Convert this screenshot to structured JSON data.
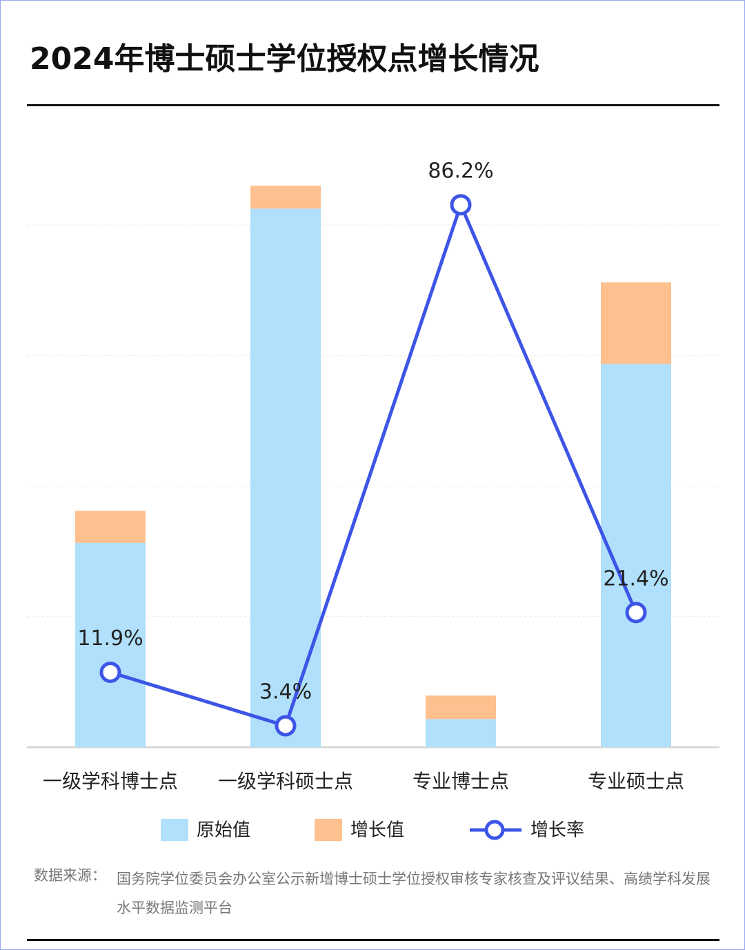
{
  "chart_data": {
    "type": "bar-line",
    "title": "2024年博士硕士学位授权点增长情况",
    "categories": [
      "一级学科博士点",
      "一级学科硕士点",
      "专业博士点",
      "专业硕士点"
    ],
    "series": [
      {
        "name": "原始值",
        "color": "#b0e0fb",
        "values": [
          3130,
          8250,
          430,
          5870
        ]
      },
      {
        "name": "增长值",
        "color": "#fdc08e",
        "values": [
          490,
          350,
          360,
          1250
        ]
      },
      {
        "name": "增长率",
        "color": "#3d55e6",
        "axis": "y2",
        "values": [
          11.9,
          3.4,
          86.2,
          21.4
        ],
        "value_labels": [
          "11.9%",
          "3.4%",
          "86.2%",
          "21.4%"
        ]
      }
    ],
    "ylim": [
      0,
      8000
    ],
    "yticks": [
      0,
      2000,
      4000,
      6000,
      8000
    ],
    "grid": true,
    "y2lim": [
      0,
      83
    ],
    "source_label": "数据来源：",
    "source": "国务院学位委员会办公室公示新增博士硕士学位授权审核专家核查及评议结果、高绩学科发展水平数据监测平台"
  }
}
